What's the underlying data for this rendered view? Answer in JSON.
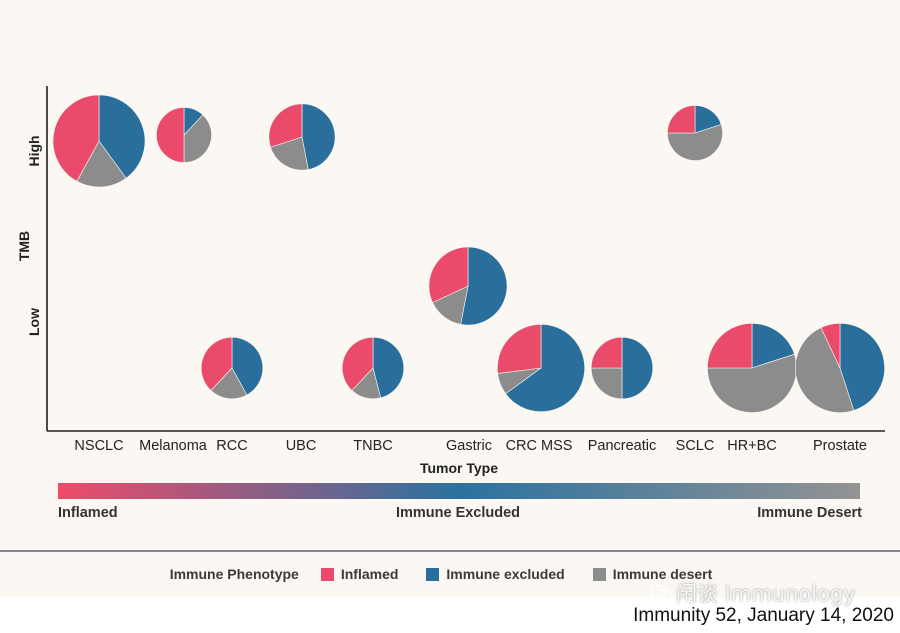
{
  "colors": {
    "inflamed": "#ea4b6a",
    "excluded": "#2a6f9b",
    "desert": "#8c8c8c",
    "axis": "#222222",
    "divider": "#6b5b74"
  },
  "chart_data": {
    "type": "pie-scatter",
    "xlabel": "Tumor Type",
    "ylabel": "TMB",
    "y_categories": [
      "Low",
      "High"
    ],
    "x_categories": [
      "NSCLC",
      "Melanoma",
      "RCC",
      "UBC",
      "TNBC",
      "Gastric",
      "CRC MSS",
      "Pancreatic",
      "SCLC",
      "HR+BC",
      "Prostate"
    ],
    "series_names": [
      "Inflamed",
      "Immune excluded",
      "Immune desert"
    ],
    "points": [
      {
        "tumor": "NSCLC",
        "tmb": "High",
        "relative_size": 1.0,
        "inflamed": 0.42,
        "excluded": 0.4,
        "desert": 0.18
      },
      {
        "tumor": "Melanoma",
        "tmb": "High",
        "relative_size": 0.6,
        "inflamed": 0.5,
        "excluded": 0.12,
        "desert": 0.38
      },
      {
        "tumor": "UBC",
        "tmb": "High",
        "relative_size": 0.72,
        "inflamed": 0.3,
        "excluded": 0.47,
        "desert": 0.23
      },
      {
        "tumor": "SCLC",
        "tmb": "High",
        "relative_size": 0.6,
        "inflamed": 0.25,
        "excluded": 0.2,
        "desert": 0.55
      },
      {
        "tumor": "Gastric",
        "tmb": "Low",
        "relative_size": 0.85,
        "inflamed": 0.32,
        "excluded": 0.53,
        "desert": 0.15
      },
      {
        "tumor": "RCC",
        "tmb": "Low",
        "relative_size": 0.67,
        "inflamed": 0.38,
        "excluded": 0.42,
        "desert": 0.2
      },
      {
        "tumor": "TNBC",
        "tmb": "Low",
        "relative_size": 0.67,
        "inflamed": 0.38,
        "excluded": 0.46,
        "desert": 0.16
      },
      {
        "tumor": "CRC MSS",
        "tmb": "Low",
        "relative_size": 0.95,
        "inflamed": 0.27,
        "excluded": 0.65,
        "desert": 0.08
      },
      {
        "tumor": "Pancreatic",
        "tmb": "Low",
        "relative_size": 0.67,
        "inflamed": 0.25,
        "excluded": 0.5,
        "desert": 0.25
      },
      {
        "tumor": "HR+BC",
        "tmb": "Low",
        "relative_size": 0.97,
        "inflamed": 0.25,
        "excluded": 0.2,
        "desert": 0.55
      },
      {
        "tumor": "Prostate",
        "tmb": "Low",
        "relative_size": 0.97,
        "inflamed": 0.07,
        "excluded": 0.45,
        "desert": 0.48
      }
    ],
    "gradient_labels": [
      "Inflamed",
      "Immune Excluded",
      "Immune Desert"
    ]
  },
  "legend": {
    "title": "Immune Phenotype",
    "items": [
      {
        "label": "Inflamed",
        "color": "#ea4b6a"
      },
      {
        "label": "Immune excluded",
        "color": "#2a6f9b"
      },
      {
        "label": "Immune desert",
        "color": "#8c8c8c"
      }
    ]
  },
  "watermark": "闲谈 Immunology",
  "citation": "Immunity 52, January 14, 2020"
}
